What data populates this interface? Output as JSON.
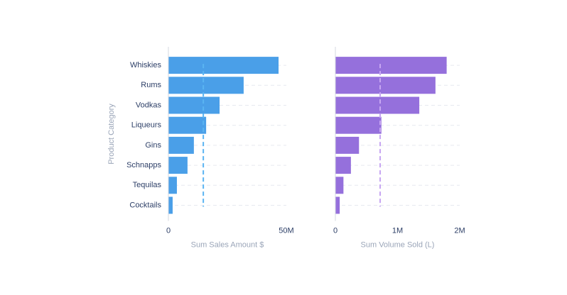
{
  "chart_data": [
    {
      "type": "bar",
      "orientation": "horizontal",
      "x_label": "Sum Sales Amount $",
      "y_label": "Product Category",
      "categories": [
        "Whiskies",
        "Rums",
        "Vodkas",
        "Liqueurs",
        "Gins",
        "Schnapps",
        "Tequilas",
        "Cocktails"
      ],
      "values": [
        46700000,
        31900000,
        21700000,
        16000000,
        10800000,
        8100000,
        3600000,
        1800000
      ],
      "color": "#4a9fe8",
      "reference_line": 14800000,
      "reference_color": "#5ab4f2",
      "xlim": [
        0,
        50000000
      ],
      "xticks": [
        0,
        {
          "value": 50000000,
          "label": "50M"
        }
      ],
      "grid": true
    },
    {
      "type": "bar",
      "orientation": "horizontal",
      "x_label": "Sum Volume Sold (L)",
      "values": [
        1790000,
        1610000,
        1350000,
        740000,
        380000,
        250000,
        130000,
        70000
      ],
      "color": "#9570dc",
      "reference_line": 720000,
      "reference_color": "#c7a6f2",
      "xlim": [
        0,
        2000000
      ],
      "xticks": [
        0,
        {
          "value": 1000000,
          "label": "1M"
        },
        {
          "value": 2000000,
          "label": "2M"
        }
      ],
      "grid": true
    }
  ]
}
